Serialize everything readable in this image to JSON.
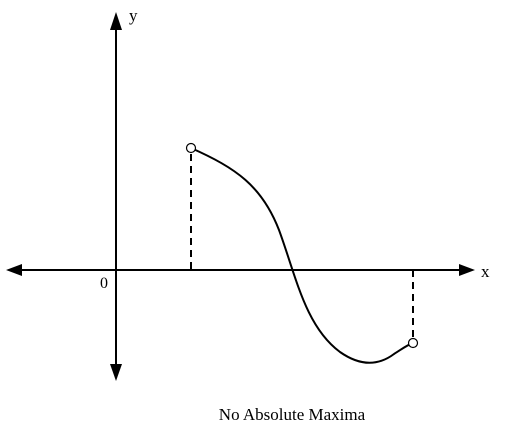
{
  "diagram": {
    "axis_x_label": "x",
    "axis_y_label": "y",
    "origin_label": "0",
    "caption": "No Absolute Maxima",
    "left_endpoint": "open",
    "right_endpoint": "open",
    "colors": {
      "stroke": "#000000",
      "open_point_fill": "#ffffff"
    }
  }
}
